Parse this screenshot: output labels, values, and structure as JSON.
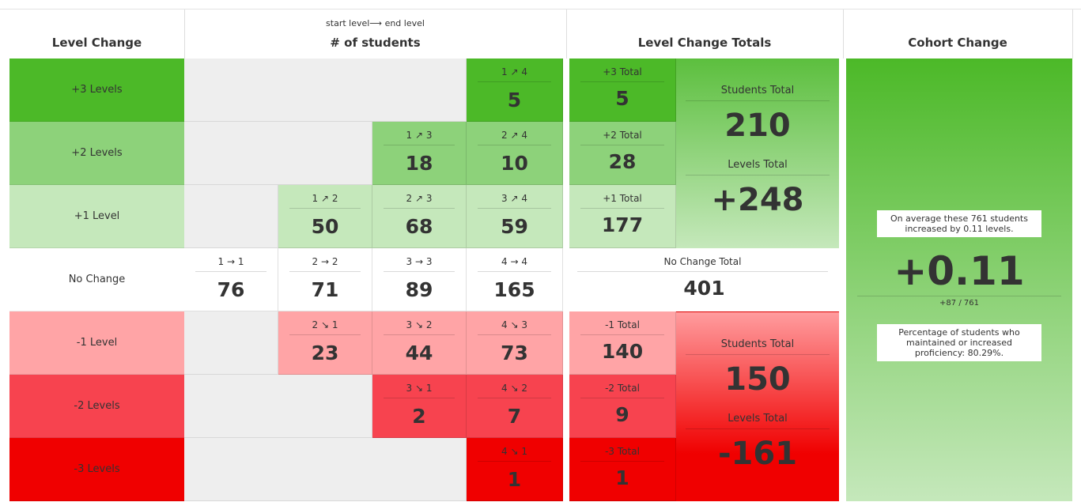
{
  "headers": {
    "level_change": "Level Change",
    "students_sub": "start level⟶ end level",
    "students": "# of students",
    "totals": "Level Change Totals",
    "cohort": "Cohort Change"
  },
  "colors": {
    "plus3": "#4cb928",
    "plus2": "#8dd27a",
    "plus1": "#c5e8bb",
    "none": "#ffffff",
    "minus1": "#ffa4a6",
    "minus2": "#f7434f",
    "minus3": "#f00000",
    "empty": "#eeeeee"
  },
  "rows": [
    {
      "label": "+3 Levels",
      "color": "plus3",
      "empty_cols": 3,
      "cells": [
        {
          "from": "1",
          "arrow": "↗",
          "to": "4",
          "count": "5"
        }
      ],
      "total_label": "+3 Total",
      "total": "5"
    },
    {
      "label": "+2 Levels",
      "color": "plus2",
      "empty_cols": 2,
      "cells": [
        {
          "from": "1",
          "arrow": "↗",
          "to": "3",
          "count": "18"
        },
        {
          "from": "2",
          "arrow": "↗",
          "to": "4",
          "count": "10"
        }
      ],
      "total_label": "+2 Total",
      "total": "28"
    },
    {
      "label": "+1 Level",
      "color": "plus1",
      "empty_cols": 1,
      "cells": [
        {
          "from": "1",
          "arrow": "↗",
          "to": "2",
          "count": "50"
        },
        {
          "from": "2",
          "arrow": "↗",
          "to": "3",
          "count": "68"
        },
        {
          "from": "3",
          "arrow": "↗",
          "to": "4",
          "count": "59"
        }
      ],
      "total_label": "+1 Total",
      "total": "177"
    },
    {
      "label": "No Change",
      "color": "none",
      "empty_cols": 0,
      "cells": [
        {
          "from": "1",
          "arrow": "→",
          "to": "1",
          "count": "76"
        },
        {
          "from": "2",
          "arrow": "→",
          "to": "2",
          "count": "71"
        },
        {
          "from": "3",
          "arrow": "→",
          "to": "3",
          "count": "89"
        },
        {
          "from": "4",
          "arrow": "→",
          "to": "4",
          "count": "165"
        }
      ],
      "total_label": "No Change Total",
      "total": "401"
    },
    {
      "label": "-1 Level",
      "color": "minus1",
      "empty_cols": 1,
      "cells": [
        {
          "from": "2",
          "arrow": "↘",
          "to": "1",
          "count": "23"
        },
        {
          "from": "3",
          "arrow": "↘",
          "to": "2",
          "count": "44"
        },
        {
          "from": "4",
          "arrow": "↘",
          "to": "3",
          "count": "73"
        }
      ],
      "total_label": "-1 Total",
      "total": "140"
    },
    {
      "label": "-2 Levels",
      "color": "minus2",
      "empty_cols": 2,
      "cells": [
        {
          "from": "3",
          "arrow": "↘",
          "to": "1",
          "count": "2"
        },
        {
          "from": "4",
          "arrow": "↘",
          "to": "2",
          "count": "7"
        }
      ],
      "total_label": "-2 Total",
      "total": "9"
    },
    {
      "label": "-3 Levels",
      "color": "minus3",
      "empty_cols": 3,
      "cells": [
        {
          "from": "4",
          "arrow": "↘",
          "to": "1",
          "count": "1"
        }
      ],
      "total_label": "-3 Total",
      "total": "1"
    }
  ],
  "positive_summary": {
    "students_label": "Students Total",
    "students": "210",
    "levels_label": "Levels Total",
    "levels": "+248"
  },
  "negative_summary": {
    "students_label": "Students Total",
    "students": "150",
    "levels_label": "Levels Total",
    "levels": "-161"
  },
  "cohort": {
    "average_note": "On average these 761 students increased by 0.11 levels.",
    "value": "+0.11",
    "fraction": "+87 / 761",
    "percentage_note": "Percentage of students who maintained or increased proficiency: 80.29%."
  }
}
